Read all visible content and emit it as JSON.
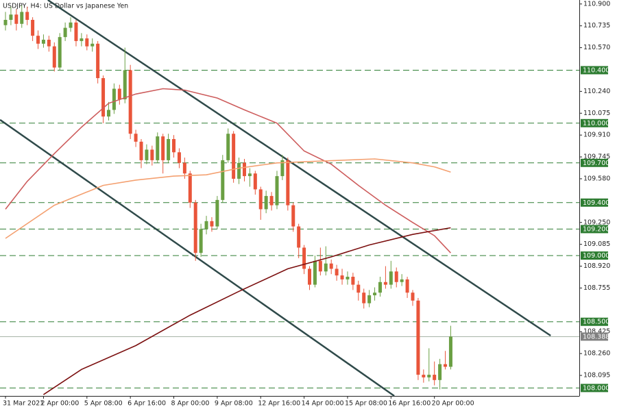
{
  "chart_data": {
    "type": "candlestick",
    "title": "USDJPY, H4:  US Dollar vs Japanese Yen",
    "categories": [
      "31 Mar 2021",
      null,
      null,
      null,
      null,
      null,
      null,
      "2 Apr 00:00",
      null,
      null,
      null,
      null,
      null,
      null,
      null,
      "5 Apr 08:00",
      null,
      null,
      null,
      null,
      null,
      null,
      null,
      "6 Apr 16:00",
      null,
      null,
      null,
      null,
      null,
      null,
      null,
      "8 Apr 00:00",
      null,
      null,
      null,
      null,
      null,
      null,
      null,
      "9 Apr 08:00",
      null,
      null,
      null,
      null,
      null,
      null,
      null,
      "12 Apr 16:00",
      null,
      null,
      null,
      null,
      null,
      null,
      null,
      "14 Apr 00:00",
      null,
      null,
      null,
      null,
      null,
      null,
      null,
      "15 Apr 08:00",
      null,
      null,
      null,
      null,
      null,
      null,
      null,
      "16 Apr 16:00",
      null,
      null,
      null,
      null,
      null,
      null,
      null,
      "20 Apr 00:00",
      null,
      null,
      null
    ],
    "open": [
      110.74,
      110.78,
      110.82,
      110.75,
      110.84,
      110.78,
      110.66,
      110.6,
      110.63,
      110.58,
      110.42,
      110.65,
      110.72,
      110.76,
      110.62,
      110.64,
      110.58,
      110.6,
      110.34,
      110.05,
      110.1,
      110.26,
      110.18,
      110.4,
      109.92,
      109.86,
      109.72,
      109.8,
      109.72,
      109.9,
      109.72,
      109.88,
      109.78,
      109.7,
      109.62,
      109.4,
      109.02,
      109.2,
      109.26,
      109.22,
      109.42,
      109.72,
      109.92,
      109.58,
      109.7,
      109.6,
      109.62,
      109.5,
      109.35,
      109.45,
      109.38,
      109.6,
      109.72,
      109.38,
      109.22,
      109.06,
      108.9,
      108.78,
      108.96,
      108.88,
      108.94,
      108.9,
      108.85,
      108.82,
      108.84,
      108.78,
      108.72,
      108.64,
      108.7,
      108.72,
      108.8,
      108.78,
      108.88,
      108.8,
      108.82,
      108.72,
      108.66,
      108.1,
      108.08,
      108.1,
      108.06,
      108.18,
      108.16
    ],
    "high": [
      110.84,
      110.88,
      110.86,
      110.89,
      110.88,
      110.8,
      110.7,
      110.67,
      110.66,
      110.61,
      110.68,
      110.76,
      110.8,
      110.78,
      110.68,
      110.67,
      110.64,
      110.62,
      110.36,
      110.16,
      110.3,
      110.29,
      110.57,
      110.44,
      109.95,
      109.88,
      109.84,
      109.83,
      109.93,
      109.92,
      109.92,
      109.91,
      109.81,
      109.74,
      109.64,
      109.42,
      109.24,
      109.3,
      109.29,
      109.45,
      109.76,
      109.96,
      109.94,
      109.74,
      109.73,
      109.66,
      109.64,
      109.52,
      109.49,
      109.48,
      109.64,
      109.76,
      109.74,
      109.4,
      109.24,
      109.08,
      108.92,
      109.0,
      109.06,
      109.07,
      108.97,
      108.93,
      108.9,
      108.88,
      108.87,
      108.81,
      108.75,
      108.74,
      108.76,
      108.84,
      108.92,
      108.96,
      108.91,
      108.86,
      108.84,
      108.74,
      108.68,
      108.14,
      108.3,
      108.2,
      108.22,
      108.28,
      108.47
    ],
    "low": [
      110.7,
      110.74,
      110.7,
      110.72,
      110.74,
      110.62,
      110.56,
      110.57,
      110.54,
      110.39,
      110.4,
      110.62,
      110.69,
      110.58,
      110.58,
      110.55,
      110.54,
      110.3,
      110.0,
      110.02,
      110.07,
      110.14,
      110.15,
      109.88,
      109.82,
      109.66,
      109.69,
      109.68,
      109.7,
      109.62,
      109.7,
      109.74,
      109.66,
      109.58,
      109.36,
      108.96,
      108.99,
      109.16,
      109.18,
      109.2,
      109.4,
      109.7,
      109.55,
      109.54,
      109.56,
      109.52,
      109.46,
      109.27,
      109.32,
      109.34,
      109.35,
      109.57,
      109.34,
      109.18,
      108.98,
      108.86,
      108.74,
      108.76,
      108.85,
      108.85,
      108.86,
      108.81,
      108.78,
      108.78,
      108.74,
      108.66,
      108.6,
      108.61,
      108.66,
      108.69,
      108.75,
      108.75,
      108.76,
      108.77,
      108.68,
      108.62,
      108.06,
      108.04,
      108.05,
      108.02,
      107.99,
      108.14,
      108.14
    ],
    "close": [
      110.78,
      110.82,
      110.75,
      110.84,
      110.78,
      110.66,
      110.6,
      110.63,
      110.58,
      110.42,
      110.65,
      110.72,
      110.76,
      110.62,
      110.64,
      110.58,
      110.6,
      110.34,
      110.05,
      110.1,
      110.26,
      110.18,
      110.4,
      109.92,
      109.86,
      109.72,
      109.8,
      109.72,
      109.9,
      109.72,
      109.88,
      109.78,
      109.7,
      109.62,
      109.4,
      109.02,
      109.2,
      109.26,
      109.22,
      109.42,
      109.72,
      109.92,
      109.58,
      109.7,
      109.6,
      109.62,
      109.5,
      109.35,
      109.45,
      109.38,
      109.6,
      109.72,
      109.38,
      109.22,
      109.06,
      108.9,
      108.78,
      108.96,
      108.88,
      108.94,
      108.9,
      108.85,
      108.82,
      108.84,
      108.78,
      108.72,
      108.64,
      108.7,
      108.72,
      108.8,
      108.78,
      108.88,
      108.8,
      108.82,
      108.72,
      108.66,
      108.1,
      108.08,
      108.1,
      108.06,
      108.18,
      108.16,
      108.388
    ],
    "up_color": "#6a9f43",
    "down_color": "#e9553a",
    "ylim": [
      107.94,
      110.93
    ],
    "yticks": [
      {
        "value": 110.9,
        "label": "110.900"
      },
      {
        "value": 110.735,
        "label": "110.735"
      },
      {
        "value": 110.57,
        "label": "110.570"
      },
      {
        "value": 110.24,
        "label": "110.240"
      },
      {
        "value": 110.075,
        "label": "110.075"
      },
      {
        "value": 109.91,
        "label": "109.910"
      },
      {
        "value": 109.745,
        "label": "109.745"
      },
      {
        "value": 109.58,
        "label": "109.580"
      },
      {
        "value": 109.25,
        "label": "109.250"
      },
      {
        "value": 109.085,
        "label": "109.085"
      },
      {
        "value": 108.92,
        "label": "108.920"
      },
      {
        "value": 108.755,
        "label": "108.755"
      },
      {
        "value": 108.425,
        "label": "108.425"
      },
      {
        "value": 108.26,
        "label": "108.260"
      },
      {
        "value": 108.095,
        "label": "108.095"
      }
    ],
    "moving_averages": [
      {
        "color": "#cd5c5c",
        "x": [
          0,
          4,
          9,
          14,
          19,
          24,
          29,
          33,
          39,
          44,
          50,
          55,
          60,
          65,
          70,
          75,
          79,
          82
        ],
        "values": [
          109.35,
          109.56,
          109.77,
          109.97,
          110.15,
          110.22,
          110.26,
          110.25,
          110.19,
          110.1,
          110.0,
          109.79,
          109.69,
          109.53,
          109.38,
          109.25,
          109.15,
          109.02
        ]
      },
      {
        "color": "#f4a070",
        "x": [
          0,
          9,
          18,
          24,
          31,
          37,
          43,
          50,
          56,
          62,
          68,
          75,
          79,
          82
        ],
        "values": [
          109.13,
          109.38,
          109.53,
          109.57,
          109.6,
          109.61,
          109.66,
          109.7,
          109.71,
          109.72,
          109.73,
          109.7,
          109.67,
          109.63
        ]
      },
      {
        "color": "#7b0f0f",
        "x": [
          7,
          14,
          24,
          34,
          43,
          52,
          60,
          67,
          75,
          82
        ],
        "values": [
          107.95,
          108.14,
          108.32,
          108.55,
          108.73,
          108.9,
          108.99,
          109.08,
          109.16,
          109.21
        ]
      }
    ],
    "trend_lines": [
      {
        "color": "#2f4a4a",
        "x": [
          7.8,
          100.4
        ],
        "values": [
          110.93,
          108.395
        ]
      },
      {
        "color": "#2f4a4a",
        "x": [
          -1,
          71.6
        ],
        "values": [
          110.025,
          107.94
        ]
      }
    ],
    "levels": {
      "color": "#2e7d32",
      "values": [
        110.4,
        110.0,
        109.7,
        109.4,
        109.2,
        109.0,
        108.5,
        108.0
      ],
      "value_labels": [
        "110.400",
        "110.000",
        "109.700",
        "109.400",
        "109.200",
        "109.000",
        "108.500",
        "108.000"
      ]
    },
    "last_price": 108.388
  }
}
